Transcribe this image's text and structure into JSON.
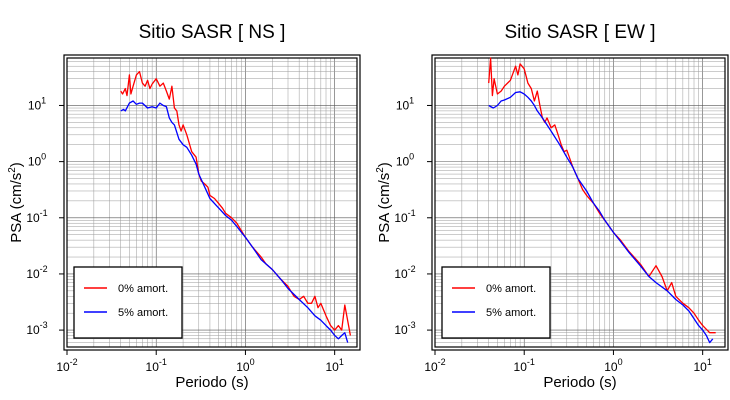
{
  "chart_data": [
    {
      "type": "line",
      "title": "Sitio SASR [ NS ]",
      "xlabel": "Periodo (s)",
      "ylabel": "PSA (cm/s",
      "ylabel_sup": "2",
      "ylabel_close": ")",
      "x_scale": "log",
      "y_scale": "log",
      "xlim": [
        0.01,
        17.8
      ],
      "ylim": [
        0.0005,
        70
      ],
      "grid": true,
      "legend_position": "bottom-left",
      "x_ticks": [
        {
          "value": 0.01,
          "base": "10",
          "exp": "-2"
        },
        {
          "value": 0.1,
          "base": "10",
          "exp": "-1"
        },
        {
          "value": 1,
          "base": "10",
          "exp": "0"
        },
        {
          "value": 10,
          "base": "10",
          "exp": "1"
        }
      ],
      "y_ticks": [
        {
          "value": 0.001,
          "base": "10",
          "exp": "-3"
        },
        {
          "value": 0.01,
          "base": "10",
          "exp": "-2"
        },
        {
          "value": 0.1,
          "base": "10",
          "exp": "-1"
        },
        {
          "value": 1,
          "base": "10",
          "exp": "0"
        },
        {
          "value": 10,
          "base": "10",
          "exp": "1"
        }
      ],
      "series": [
        {
          "name": "0% amort.",
          "color": "#ff0000",
          "points": [
            [
              0.04,
              18
            ],
            [
              0.042,
              16
            ],
            [
              0.045,
              20
            ],
            [
              0.047,
              15
            ],
            [
              0.05,
              35
            ],
            [
              0.052,
              16
            ],
            [
              0.055,
              22
            ],
            [
              0.06,
              35
            ],
            [
              0.065,
              40
            ],
            [
              0.07,
              25
            ],
            [
              0.075,
              22
            ],
            [
              0.08,
              28
            ],
            [
              0.085,
              20
            ],
            [
              0.09,
              24
            ],
            [
              0.1,
              30
            ],
            [
              0.11,
              22
            ],
            [
              0.12,
              25
            ],
            [
              0.13,
              18
            ],
            [
              0.14,
              13
            ],
            [
              0.15,
              22
            ],
            [
              0.16,
              9
            ],
            [
              0.17,
              8
            ],
            [
              0.18,
              4.5
            ],
            [
              0.19,
              3.5
            ],
            [
              0.2,
              4.5
            ],
            [
              0.22,
              3
            ],
            [
              0.25,
              1.5
            ],
            [
              0.28,
              1.2
            ],
            [
              0.3,
              0.6
            ],
            [
              0.32,
              0.45
            ],
            [
              0.35,
              0.4
            ],
            [
              0.38,
              0.35
            ],
            [
              0.4,
              0.25
            ],
            [
              0.45,
              0.22
            ],
            [
              0.5,
              0.18
            ],
            [
              0.55,
              0.15
            ],
            [
              0.6,
              0.12
            ],
            [
              0.7,
              0.1
            ],
            [
              0.8,
              0.08
            ],
            [
              1.0,
              0.045
            ],
            [
              1.2,
              0.03
            ],
            [
              1.5,
              0.02
            ],
            [
              1.7,
              0.015
            ],
            [
              2.0,
              0.012
            ],
            [
              2.5,
              0.008
            ],
            [
              3.0,
              0.006
            ],
            [
              3.5,
              0.004
            ],
            [
              4.0,
              0.0035
            ],
            [
              4.5,
              0.004
            ],
            [
              5.0,
              0.003
            ],
            [
              5.5,
              0.003
            ],
            [
              6.0,
              0.004
            ],
            [
              6.5,
              0.0025
            ],
            [
              7.0,
              0.003
            ],
            [
              8.0,
              0.0018
            ],
            [
              9.0,
              0.0012
            ],
            [
              10.0,
              0.001
            ],
            [
              11.0,
              0.0012
            ],
            [
              12.0,
              0.001
            ],
            [
              13.0,
              0.0028
            ],
            [
              15.0,
              0.0008
            ]
          ]
        },
        {
          "name": "5% amort.",
          "color": "#0000ff",
          "points": [
            [
              0.04,
              8
            ],
            [
              0.043,
              8.5
            ],
            [
              0.045,
              8
            ],
            [
              0.05,
              11
            ],
            [
              0.055,
              12
            ],
            [
              0.06,
              10.5
            ],
            [
              0.065,
              11
            ],
            [
              0.07,
              11
            ],
            [
              0.08,
              9
            ],
            [
              0.09,
              9.5
            ],
            [
              0.1,
              9
            ],
            [
              0.11,
              11
            ],
            [
              0.12,
              10
            ],
            [
              0.13,
              9.5
            ],
            [
              0.14,
              6
            ],
            [
              0.15,
              5
            ],
            [
              0.16,
              4.5
            ],
            [
              0.18,
              2.5
            ],
            [
              0.2,
              2
            ],
            [
              0.22,
              1.8
            ],
            [
              0.25,
              1.3
            ],
            [
              0.28,
              0.9
            ],
            [
              0.3,
              0.6
            ],
            [
              0.35,
              0.35
            ],
            [
              0.4,
              0.22
            ],
            [
              0.5,
              0.15
            ],
            [
              0.6,
              0.11
            ],
            [
              0.7,
              0.09
            ],
            [
              0.8,
              0.07
            ],
            [
              1.0,
              0.045
            ],
            [
              1.2,
              0.03
            ],
            [
              1.5,
              0.018
            ],
            [
              2.0,
              0.012
            ],
            [
              2.5,
              0.008
            ],
            [
              3.0,
              0.0055
            ],
            [
              4.0,
              0.0035
            ],
            [
              5.0,
              0.0025
            ],
            [
              6.0,
              0.0018
            ],
            [
              7.0,
              0.0015
            ],
            [
              8.0,
              0.0012
            ],
            [
              9.0,
              0.001
            ],
            [
              10.0,
              0.0008
            ],
            [
              11.0,
              0.0007
            ],
            [
              12.0,
              0.0008
            ],
            [
              13.0,
              0.0009
            ],
            [
              14.0,
              0.0006
            ]
          ]
        }
      ]
    },
    {
      "type": "line",
      "title": "Sitio SASR [ EW ]",
      "xlabel": "Periodo (s)",
      "ylabel": "PSA (cm/s",
      "ylabel_sup": "2",
      "ylabel_close": ")",
      "x_scale": "log",
      "y_scale": "log",
      "xlim": [
        0.01,
        17.8
      ],
      "ylim": [
        0.0005,
        70
      ],
      "grid": true,
      "legend_position": "bottom-left",
      "x_ticks": [
        {
          "value": 0.01,
          "base": "10",
          "exp": "-2"
        },
        {
          "value": 0.1,
          "base": "10",
          "exp": "-1"
        },
        {
          "value": 1,
          "base": "10",
          "exp": "0"
        },
        {
          "value": 10,
          "base": "10",
          "exp": "1"
        }
      ],
      "y_ticks": [
        {
          "value": 0.001,
          "base": "10",
          "exp": "-3"
        },
        {
          "value": 0.01,
          "base": "10",
          "exp": "-2"
        },
        {
          "value": 0.1,
          "base": "10",
          "exp": "-1"
        },
        {
          "value": 1,
          "base": "10",
          "exp": "0"
        },
        {
          "value": 10,
          "base": "10",
          "exp": "1"
        }
      ],
      "series": [
        {
          "name": "0% amort.",
          "color": "#ff0000",
          "points": [
            [
              0.04,
              25
            ],
            [
              0.042,
              70
            ],
            [
              0.044,
              15
            ],
            [
              0.046,
              30
            ],
            [
              0.05,
              16
            ],
            [
              0.055,
              18
            ],
            [
              0.06,
              22
            ],
            [
              0.07,
              28
            ],
            [
              0.08,
              50
            ],
            [
              0.085,
              35
            ],
            [
              0.09,
              55
            ],
            [
              0.1,
              45
            ],
            [
              0.11,
              25
            ],
            [
              0.12,
              20
            ],
            [
              0.13,
              12
            ],
            [
              0.14,
              18
            ],
            [
              0.15,
              10
            ],
            [
              0.16,
              6
            ],
            [
              0.17,
              5
            ],
            [
              0.18,
              6
            ],
            [
              0.2,
              4
            ],
            [
              0.22,
              4.5
            ],
            [
              0.24,
              3
            ],
            [
              0.26,
              2
            ],
            [
              0.28,
              1.5
            ],
            [
              0.3,
              1.6
            ],
            [
              0.32,
              1.2
            ],
            [
              0.35,
              0.8
            ],
            [
              0.4,
              0.5
            ],
            [
              0.45,
              0.32
            ],
            [
              0.5,
              0.25
            ],
            [
              0.6,
              0.18
            ],
            [
              0.7,
              0.12
            ],
            [
              0.8,
              0.09
            ],
            [
              1.0,
              0.055
            ],
            [
              1.2,
              0.04
            ],
            [
              1.5,
              0.025
            ],
            [
              2.0,
              0.015
            ],
            [
              2.5,
              0.009
            ],
            [
              3.0,
              0.014
            ],
            [
              3.5,
              0.009
            ],
            [
              4.0,
              0.005
            ],
            [
              4.5,
              0.007
            ],
            [
              5.0,
              0.004
            ],
            [
              6.0,
              0.003
            ],
            [
              7.0,
              0.0025
            ],
            [
              8.0,
              0.002
            ],
            [
              9.0,
              0.0015
            ],
            [
              10.0,
              0.0012
            ],
            [
              12.0,
              0.0009
            ],
            [
              14.0,
              0.0009
            ]
          ]
        },
        {
          "name": "5% amort.",
          "color": "#0000ff",
          "points": [
            [
              0.04,
              10
            ],
            [
              0.045,
              9
            ],
            [
              0.05,
              10
            ],
            [
              0.055,
              12
            ],
            [
              0.06,
              12.5
            ],
            [
              0.07,
              14
            ],
            [
              0.08,
              17
            ],
            [
              0.09,
              17.5
            ],
            [
              0.1,
              16
            ],
            [
              0.11,
              14
            ],
            [
              0.12,
              12
            ],
            [
              0.13,
              10
            ],
            [
              0.14,
              8
            ],
            [
              0.16,
              6
            ],
            [
              0.18,
              4.5
            ],
            [
              0.2,
              3.5
            ],
            [
              0.25,
              2
            ],
            [
              0.3,
              1.2
            ],
            [
              0.35,
              0.8
            ],
            [
              0.4,
              0.5
            ],
            [
              0.5,
              0.3
            ],
            [
              0.6,
              0.18
            ],
            [
              0.7,
              0.13
            ],
            [
              0.8,
              0.09
            ],
            [
              1.0,
              0.055
            ],
            [
              1.2,
              0.038
            ],
            [
              1.5,
              0.024
            ],
            [
              2.0,
              0.014
            ],
            [
              2.5,
              0.009
            ],
            [
              3.0,
              0.007
            ],
            [
              4.0,
              0.005
            ],
            [
              5.0,
              0.0035
            ],
            [
              6.0,
              0.0028
            ],
            [
              7.0,
              0.0022
            ],
            [
              8.0,
              0.0016
            ],
            [
              9.0,
              0.0012
            ],
            [
              10.0,
              0.001
            ],
            [
              11.0,
              0.0008
            ],
            [
              12.0,
              0.0006
            ],
            [
              13.0,
              0.0007
            ]
          ]
        }
      ]
    }
  ]
}
